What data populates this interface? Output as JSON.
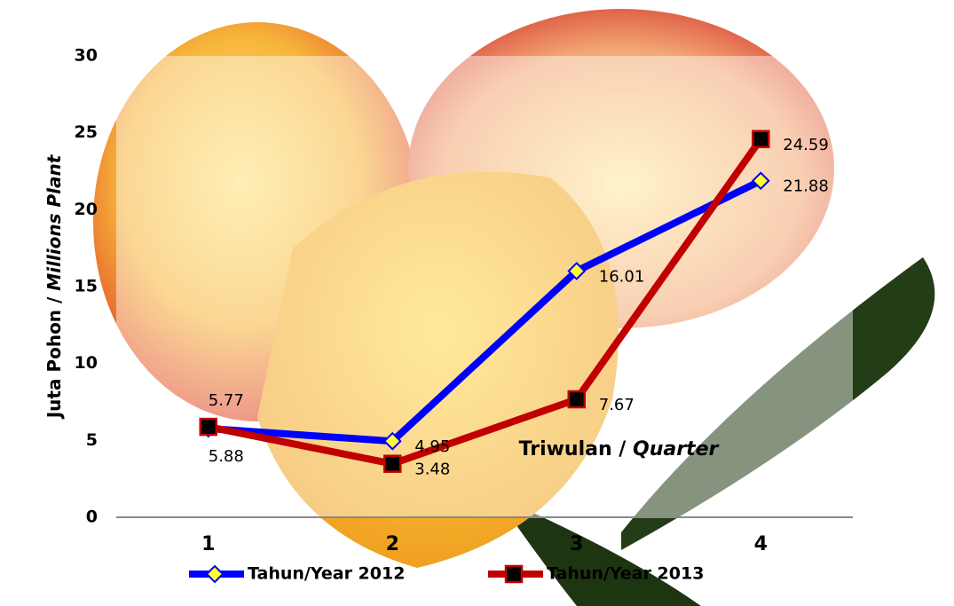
{
  "chart_data": {
    "type": "line",
    "ylabel": [
      "Juta Pohon / ",
      "Millions Plant"
    ],
    "xlabel": [
      "Triwulan / ",
      "Quarter"
    ],
    "categories": [
      "1",
      "2",
      "3",
      "4"
    ],
    "series": [
      {
        "name": "Tahun/Year 2012",
        "color": "#0000ff",
        "marker_fill": "#ffff33",
        "marker": "diamond",
        "values": [
          5.77,
          4.95,
          16.01,
          21.88
        ]
      },
      {
        "name": "Tahun/Year 2013",
        "color": "#c00000",
        "marker_fill": "#000000",
        "marker": "square",
        "values": [
          5.88,
          3.48,
          7.67,
          24.59
        ]
      }
    ],
    "ylim": [
      0,
      30
    ],
    "yticks": [
      0,
      5,
      10,
      15,
      20,
      25,
      30
    ],
    "grid": false
  }
}
